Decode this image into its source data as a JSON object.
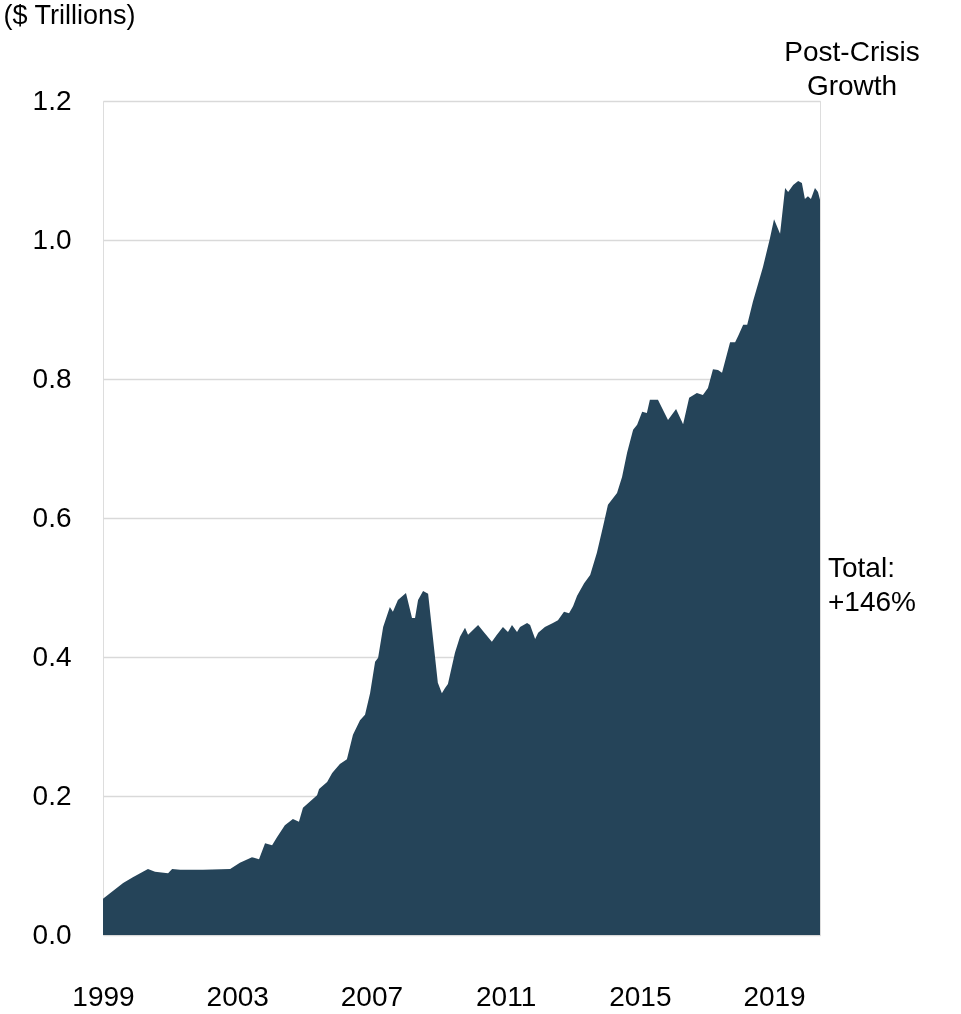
{
  "chart_data": {
    "type": "area",
    "ylabel": "($ Trillions)",
    "annotations": [
      "Post-Crisis Growth",
      "Total: +146%"
    ],
    "xlim": [
      1999,
      2020.37
    ],
    "xticks": [
      1999,
      2003,
      2007,
      2011,
      2015,
      2019
    ],
    "ylim": [
      0,
      1.2
    ],
    "yticks": [
      {
        "value": 0,
        "label": "0.0"
      },
      0.2,
      0.4,
      0.6,
      0.8,
      {
        "value": 1,
        "label": "1.0"
      },
      1.2
    ],
    "grid": "y",
    "series": [
      {
        "color": "#254459",
        "x": [
          1999.0,
          1999.6,
          1999.89,
          2000.34,
          2000.55,
          2000.94,
          2001.06,
          2001.3,
          2001.98,
          2002.79,
          2003.08,
          2003.44,
          2003.65,
          2003.83,
          2004.04,
          2004.19,
          2004.42,
          2004.66,
          2004.84,
          2004.96,
          2005.38,
          2005.44,
          2005.68,
          2005.83,
          2006.06,
          2006.27,
          2006.45,
          2006.66,
          2006.81,
          2006.96,
          2007.11,
          2007.2,
          2007.35,
          2007.55,
          2007.64,
          2007.79,
          2008.03,
          2008.21,
          2008.3,
          2008.39,
          2008.54,
          2008.69,
          2008.98,
          2009.1,
          2009.19,
          2009.28,
          2009.49,
          2009.64,
          2009.79,
          2009.88,
          2010.18,
          2010.33,
          2010.59,
          2010.74,
          2010.92,
          2011.07,
          2011.19,
          2011.34,
          2011.43,
          2011.64,
          2011.73,
          2011.88,
          2011.97,
          2012.17,
          2012.41,
          2012.56,
          2012.74,
          2012.89,
          2013.01,
          2013.13,
          2013.34,
          2013.52,
          2013.72,
          2013.9,
          2014.05,
          2014.32,
          2014.47,
          2014.62,
          2014.8,
          2014.92,
          2015.07,
          2015.21,
          2015.3,
          2015.54,
          2015.84,
          2016.08,
          2016.29,
          2016.47,
          2016.7,
          2016.88,
          2017.03,
          2017.18,
          2017.33,
          2017.45,
          2017.69,
          2017.84,
          2017.93,
          2018.08,
          2018.2,
          2018.37,
          2018.67,
          2018.88,
          2019.0,
          2019.18,
          2019.33,
          2019.42,
          2019.57,
          2019.72,
          2019.83,
          2019.92,
          2020.01,
          2020.1,
          2020.22,
          2020.31,
          2020.37
        ],
        "values": [
          0.052,
          0.075,
          0.083,
          0.095,
          0.091,
          0.089,
          0.095,
          0.094,
          0.094,
          0.095,
          0.104,
          0.112,
          0.109,
          0.132,
          0.129,
          0.141,
          0.158,
          0.167,
          0.163,
          0.183,
          0.201,
          0.21,
          0.22,
          0.233,
          0.246,
          0.253,
          0.288,
          0.309,
          0.317,
          0.348,
          0.393,
          0.399,
          0.443,
          0.472,
          0.465,
          0.482,
          0.492,
          0.456,
          0.456,
          0.482,
          0.495,
          0.491,
          0.363,
          0.348,
          0.355,
          0.361,
          0.406,
          0.429,
          0.442,
          0.432,
          0.446,
          0.437,
          0.422,
          0.432,
          0.443,
          0.436,
          0.446,
          0.436,
          0.443,
          0.449,
          0.446,
          0.426,
          0.435,
          0.443,
          0.449,
          0.453,
          0.465,
          0.463,
          0.473,
          0.488,
          0.506,
          0.518,
          0.55,
          0.587,
          0.619,
          0.636,
          0.659,
          0.694,
          0.727,
          0.734,
          0.753,
          0.751,
          0.77,
          0.77,
          0.741,
          0.757,
          0.735,
          0.773,
          0.78,
          0.777,
          0.787,
          0.814,
          0.813,
          0.809,
          0.853,
          0.853,
          0.862,
          0.878,
          0.878,
          0.911,
          0.961,
          1.003,
          1.03,
          1.009,
          1.075,
          1.069,
          1.079,
          1.085,
          1.082,
          1.059,
          1.063,
          1.059,
          1.075,
          1.069,
          1.058
        ]
      }
    ]
  }
}
